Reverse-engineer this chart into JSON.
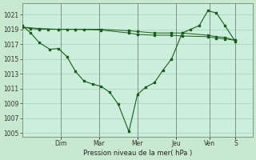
{
  "xlabel": "Pression niveau de la mer( hPa )",
  "ylim": [
    1004.5,
    1022.5
  ],
  "yticks": [
    1005,
    1007,
    1009,
    1011,
    1013,
    1015,
    1017,
    1019,
    1021
  ],
  "background_color": "#c8e8d0",
  "plot_bg_color": "#cceedd",
  "line_color": "#1a5c1a",
  "grid_color": "#a8d4b8",
  "day_labels": [
    "Dim",
    "Mar",
    "Mer",
    "Jeu",
    "Ven",
    "S"
  ],
  "day_x": [
    0.18,
    0.36,
    0.54,
    0.72,
    0.88,
    1.0
  ],
  "xlim": [
    0.0,
    1.08
  ],
  "line1_x": [
    0.0,
    0.04,
    0.08,
    0.13,
    0.17,
    0.21,
    0.25,
    0.29,
    0.33,
    0.37,
    0.41,
    0.45,
    0.5,
    0.54,
    0.58,
    0.62,
    0.66,
    0.7,
    0.75,
    0.79,
    0.83,
    0.87,
    0.91,
    0.95,
    1.0
  ],
  "line1_y": [
    1019.5,
    1018.5,
    1017.2,
    1016.3,
    1016.4,
    1015.3,
    1013.3,
    1012.0,
    1011.6,
    1011.3,
    1010.5,
    1008.9,
    1005.2,
    1010.2,
    1011.2,
    1011.8,
    1013.5,
    1015.0,
    1018.5,
    1019.0,
    1019.5,
    1021.5,
    1021.2,
    1019.5,
    1017.3
  ],
  "line2_x": [
    0.0,
    0.04,
    0.08,
    0.12,
    0.17,
    0.21,
    0.25,
    0.29,
    0.37,
    0.5,
    0.54,
    0.62,
    0.7,
    0.75,
    0.87,
    0.91,
    0.95,
    1.0
  ],
  "line2_y": [
    1019.3,
    1019.1,
    1019.0,
    1019.0,
    1019.0,
    1019.0,
    1019.0,
    1019.0,
    1019.0,
    1018.8,
    1018.7,
    1018.5,
    1018.5,
    1018.5,
    1018.2,
    1018.0,
    1017.9,
    1017.5
  ],
  "line3_x": [
    0.0,
    0.08,
    0.17,
    0.25,
    0.37,
    0.5,
    0.54,
    0.62,
    0.7,
    0.75,
    0.87,
    0.91,
    0.95,
    1.0
  ],
  "line3_y": [
    1019.3,
    1019.1,
    1019.0,
    1019.0,
    1018.9,
    1018.5,
    1018.3,
    1018.2,
    1018.2,
    1018.1,
    1018.0,
    1017.8,
    1017.7,
    1017.5
  ]
}
